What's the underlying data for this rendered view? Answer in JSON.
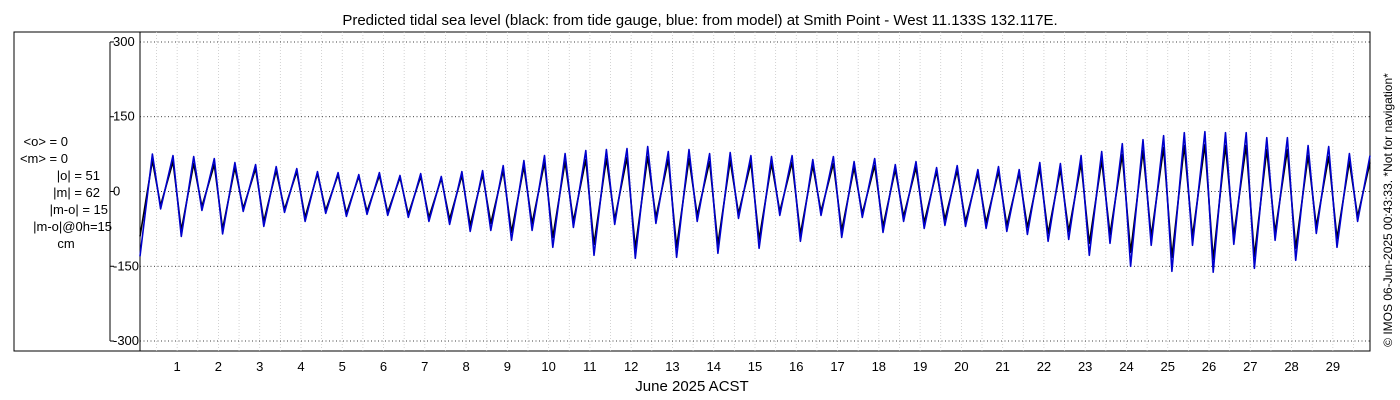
{
  "chart_data": {
    "type": "line",
    "title": "Predicted tidal sea level (black: from tide gauge, blue: from model) at Smith Point - West 11.133S 132.117E.",
    "xlabel": "June 2025 ACST",
    "ylabel": "",
    "xlim": [
      0.6,
      30.4
    ],
    "ylim": [
      -320,
      320
    ],
    "xticks": [
      1,
      2,
      3,
      4,
      5,
      6,
      7,
      8,
      9,
      10,
      11,
      12,
      13,
      14,
      15,
      16,
      17,
      18,
      19,
      20,
      21,
      22,
      23,
      24,
      25,
      26,
      27,
      28,
      29
    ],
    "xtick_labels": [
      "1",
      "2",
      "3",
      "4",
      "5",
      "6",
      "7",
      "8",
      "9",
      "10",
      "11",
      "12",
      "13",
      "14",
      "15",
      "16",
      "17",
      "18",
      "19",
      "20",
      "21",
      "22",
      "23",
      "24",
      "25",
      "26",
      "27",
      "28",
      "29"
    ],
    "yticks": [
      300,
      150,
      0,
      -150,
      -300
    ],
    "ytick_labels": [
      "300",
      "150",
      "0",
      "-150",
      "-300"
    ],
    "grid": "dotted",
    "series": [
      {
        "name": "tide gauge",
        "color": "#000000",
        "x": [
          0.6,
          0.9,
          1.1,
          1.4,
          1.6,
          1.9,
          2.1,
          2.4,
          2.6,
          2.9,
          3.1,
          3.4,
          3.6,
          3.9,
          4.1,
          4.4,
          4.6,
          4.9,
          5.1,
          5.4,
          5.6,
          5.9,
          6.1,
          6.4,
          6.6,
          6.9,
          7.1,
          7.4,
          7.6,
          7.9,
          8.1,
          8.4,
          8.6,
          8.9,
          9.1,
          9.4,
          9.6,
          9.9,
          10.1,
          10.4,
          10.6,
          10.9,
          11.1,
          11.4,
          11.6,
          11.9,
          12.1,
          12.4,
          12.6,
          12.9,
          13.1,
          13.4,
          13.6,
          13.9,
          14.1,
          14.4,
          14.6,
          14.9,
          15.1,
          15.4,
          15.6,
          15.9,
          16.1,
          16.4,
          16.6,
          16.9,
          17.1,
          17.4,
          17.6,
          17.9,
          18.1,
          18.4,
          18.6,
          18.9,
          19.1,
          19.4,
          19.6,
          19.9,
          20.1,
          20.4,
          20.6,
          20.9,
          21.1,
          21.4,
          21.6,
          21.9,
          22.1,
          22.4,
          22.6,
          22.9,
          23.1,
          23.4,
          23.6,
          23.9,
          24.1,
          24.4,
          24.6,
          24.9,
          25.1,
          25.4,
          25.6,
          25.9,
          26.1,
          26.4,
          26.6,
          26.9,
          27.1,
          27.4,
          27.6,
          27.9,
          28.1,
          28.4,
          28.6,
          28.9,
          29.1,
          29.4,
          29.6,
          29.9,
          30.1,
          30.4
        ],
        "values": [
          -90,
          62,
          -28,
          60,
          -78,
          56,
          -30,
          54,
          -75,
          48,
          -34,
          46,
          -60,
          42,
          -36,
          40,
          -52,
          36,
          -38,
          34,
          -44,
          30,
          -40,
          32,
          -42,
          28,
          -46,
          30,
          -52,
          26,
          -56,
          32,
          -68,
          34,
          -64,
          42,
          -82,
          50,
          -64,
          58,
          -92,
          60,
          -60,
          64,
          -106,
          66,
          -56,
          68,
          -114,
          70,
          -52,
          64,
          -112,
          66,
          -48,
          60,
          -106,
          62,
          -44,
          58,
          -96,
          56,
          -40,
          58,
          -86,
          52,
          -40,
          56,
          -78,
          48,
          -44,
          52,
          -70,
          44,
          -50,
          48,
          -62,
          40,
          -56,
          42,
          -60,
          36,
          -62,
          40,
          -68,
          36,
          -72,
          46,
          -84,
          44,
          -80,
          56,
          -104,
          62,
          -86,
          74,
          -122,
          82,
          -90,
          88,
          -132,
          92,
          -90,
          94,
          -136,
          92,
          -88,
          92,
          -130,
          84,
          -82,
          84,
          -114,
          72,
          -70,
          70,
          -94,
          60,
          -50,
          58
        ]
      },
      {
        "name": "model",
        "color": "#0000cc",
        "x": [
          0.6,
          0.9,
          1.1,
          1.4,
          1.6,
          1.9,
          2.1,
          2.4,
          2.6,
          2.9,
          3.1,
          3.4,
          3.6,
          3.9,
          4.1,
          4.4,
          4.6,
          4.9,
          5.1,
          5.4,
          5.6,
          5.9,
          6.1,
          6.4,
          6.6,
          6.9,
          7.1,
          7.4,
          7.6,
          7.9,
          8.1,
          8.4,
          8.6,
          8.9,
          9.1,
          9.4,
          9.6,
          9.9,
          10.1,
          10.4,
          10.6,
          10.9,
          11.1,
          11.4,
          11.6,
          11.9,
          12.1,
          12.4,
          12.6,
          12.9,
          13.1,
          13.4,
          13.6,
          13.9,
          14.1,
          14.4,
          14.6,
          14.9,
          15.1,
          15.4,
          15.6,
          15.9,
          16.1,
          16.4,
          16.6,
          16.9,
          17.1,
          17.4,
          17.6,
          17.9,
          18.1,
          18.4,
          18.6,
          18.9,
          19.1,
          19.4,
          19.6,
          19.9,
          20.1,
          20.4,
          20.6,
          20.9,
          21.1,
          21.4,
          21.6,
          21.9,
          22.1,
          22.4,
          22.6,
          22.9,
          23.1,
          23.4,
          23.6,
          23.9,
          24.1,
          24.4,
          24.6,
          24.9,
          25.1,
          25.4,
          25.6,
          25.9,
          26.1,
          26.4,
          26.6,
          26.9,
          27.1,
          27.4,
          27.6,
          27.9,
          28.1,
          28.4,
          28.6,
          28.9,
          29.1,
          29.4,
          29.6,
          29.9,
          30.1,
          30.4
        ],
        "values": [
          -130,
          75,
          -35,
          72,
          -90,
          70,
          -38,
          66,
          -85,
          58,
          -40,
          54,
          -70,
          50,
          -42,
          46,
          -60,
          40,
          -44,
          38,
          -50,
          34,
          -46,
          38,
          -48,
          32,
          -52,
          36,
          -60,
          30,
          -66,
          40,
          -80,
          42,
          -78,
          52,
          -98,
          62,
          -78,
          72,
          -112,
          76,
          -72,
          82,
          -128,
          84,
          -66,
          86,
          -134,
          90,
          -64,
          80,
          -132,
          84,
          -60,
          76,
          -124,
          78,
          -54,
          72,
          -114,
          70,
          -48,
          72,
          -100,
          64,
          -48,
          70,
          -92,
          60,
          -52,
          66,
          -82,
          54,
          -60,
          60,
          -74,
          48,
          -68,
          52,
          -70,
          44,
          -74,
          50,
          -80,
          44,
          -86,
          58,
          -100,
          56,
          -96,
          72,
          -128,
          80,
          -104,
          96,
          -150,
          104,
          -108,
          112,
          -160,
          118,
          -108,
          120,
          -162,
          118,
          -106,
          118,
          -154,
          108,
          -98,
          108,
          -138,
          92,
          -84,
          90,
          -112,
          76,
          -60,
          72
        ]
      }
    ],
    "stats": [
      {
        "label": "<o> = 0"
      },
      {
        "label": "<m> = 0"
      },
      {
        "label": "|o| = 51"
      },
      {
        "label": "|m| = 62"
      },
      {
        "label": "|m-o| = 15"
      },
      {
        "label": "|m-o|@0h=15"
      },
      {
        "label": "cm"
      }
    ],
    "side_note": "© IMOS 06-Jun-2025 00:43:33. *Not for navigation*"
  }
}
